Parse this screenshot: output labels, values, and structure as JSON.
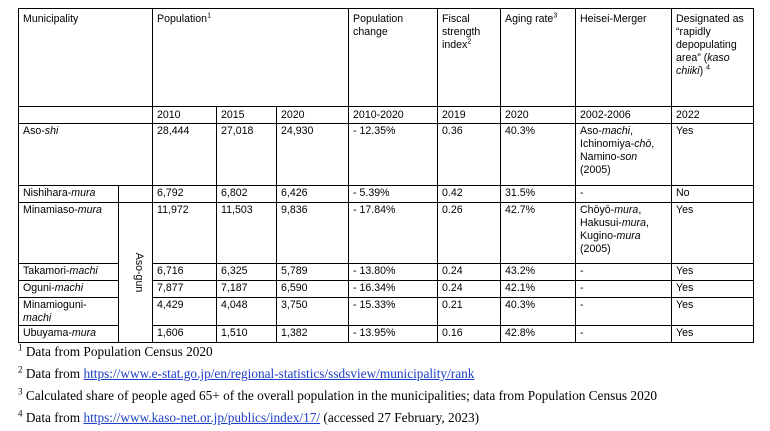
{
  "table": {
    "headers": {
      "municipality": "Municipality",
      "population": "Population",
      "population_sup": "1",
      "population_change": "Population change",
      "fiscal_a": "Fiscal strength",
      "fiscal_b": "index",
      "fiscal_sup": "2",
      "aging": "Aging rate",
      "aging_sup": "3",
      "merger": "Heisei-Merger",
      "kaso_a": "Designated as “rapidly depopulating area” (",
      "kaso_b": "kaso chiiki",
      "kaso_c": ")",
      "kaso_sup": "4"
    },
    "subheaders": [
      "2010",
      "2015",
      "2020",
      "2010-2020",
      "2019",
      "2020",
      "2002-2006",
      "2022"
    ],
    "aso_gun": "Aso-gun",
    "rows": [
      {
        "name": "Aso-",
        "suffix": "shi",
        "p2010": "28,444",
        "p2015": "27,018",
        "p2020": "24,930",
        "change": "- 12.35%",
        "fiscal": "0.36",
        "aging": "40.3%",
        "merger": [
          [
            "Aso-",
            false
          ],
          [
            "machi",
            true
          ],
          [
            ", Ichinomiya-",
            false
          ],
          [
            "chō",
            true
          ],
          [
            ", Namino-",
            false
          ],
          [
            "son",
            true
          ],
          [
            " (2005)",
            false
          ]
        ],
        "kaso": "Yes"
      },
      {
        "name": "Nishihara-",
        "suffix": "mura",
        "p2010": "6,792",
        "p2015": "6,802",
        "p2020": "6,426",
        "change": "- 5.39%",
        "fiscal": "0.42",
        "aging": "31.5%",
        "merger": [
          [
            "-",
            false
          ]
        ],
        "kaso": "No"
      },
      {
        "name": "Minamiaso-",
        "suffix": "mura",
        "p2010": "11,972",
        "p2015": "11,503",
        "p2020": "9,836",
        "change": "- 17.84%",
        "fiscal": "0.26",
        "aging": "42.7%",
        "merger": [
          [
            "Chōyō-",
            false
          ],
          [
            "mura",
            true
          ],
          [
            ", Hakusui-",
            false
          ],
          [
            "mura",
            true
          ],
          [
            ", Kugino-",
            false
          ],
          [
            "mura",
            true
          ],
          [
            " (2005)",
            false
          ]
        ],
        "kaso": "Yes"
      },
      {
        "name": "Takamori-",
        "suffix": "machi",
        "p2010": "6,716",
        "p2015": "6,325",
        "p2020": "5,789",
        "change": "- 13.80%",
        "fiscal": "0.24",
        "aging": "43.2%",
        "merger": [
          [
            "-",
            false
          ]
        ],
        "kaso": "Yes"
      },
      {
        "name": "Oguni-",
        "suffix": "machi",
        "p2010": "7,877",
        "p2015": "7,187",
        "p2020": "6,590",
        "change": "- 16.34%",
        "fiscal": "0.24",
        "aging": "42.1%",
        "merger": [
          [
            "-",
            false
          ]
        ],
        "kaso": "Yes"
      },
      {
        "name": "Minamioguni-",
        "suffix": "machi",
        "p2010": "4,429",
        "p2015": "4,048",
        "p2020": "3,750",
        "change": "- 15.33%",
        "fiscal": "0.21",
        "aging": "40.3%",
        "merger": [
          [
            "-",
            false
          ]
        ],
        "kaso": "Yes"
      },
      {
        "name": "Ubuyama-",
        "suffix": "mura",
        "p2010": "1,606",
        "p2015": "1,510",
        "p2020": "1,382",
        "change": "- 13.95%",
        "fiscal": "0.16",
        "aging": "42.8%",
        "merger": [
          [
            "-",
            false
          ]
        ],
        "kaso": "Yes"
      }
    ]
  },
  "footnotes": [
    {
      "num": "1",
      "text": "Data from Population Census 2020",
      "link": "",
      "after": ""
    },
    {
      "num": "2",
      "text": "Data from ",
      "link": "https://www.e-stat.go.jp/en/regional-statistics/ssdsview/municipality/rank",
      "after": ""
    },
    {
      "num": "3",
      "text": "Calculated share of people aged 65+ of the overall population in the municipalities; data from Population Census 2020",
      "link": "",
      "after": ""
    },
    {
      "num": "4",
      "text": "Data from ",
      "link": "https://www.kaso-net.or.jp/publics/index/17/",
      "after": " (accessed 27 February, 2023)"
    }
  ]
}
